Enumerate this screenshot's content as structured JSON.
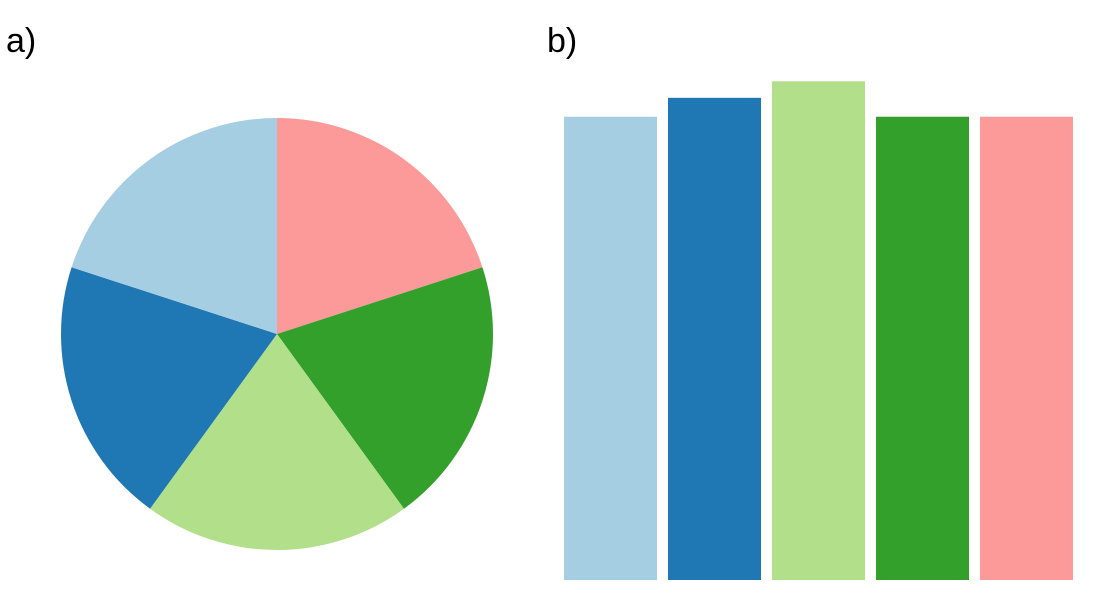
{
  "panels": {
    "a_label": "a)",
    "b_label": "b)"
  },
  "chart_data": [
    {
      "type": "pie",
      "panel": "a)",
      "values": [
        20,
        20,
        20,
        20,
        20
      ],
      "colors": [
        "#fb9a99",
        "#33a02c",
        "#b2df8a",
        "#1f78b4",
        "#a6cee3"
      ],
      "start_angle_deg": 0,
      "direction": "clockwise",
      "title": ""
    },
    {
      "type": "bar",
      "panel": "b)",
      "values": [
        19.6,
        20.4,
        21.1,
        19.6,
        19.6
      ],
      "colors": [
        "#a6cee3",
        "#1f78b4",
        "#b2df8a",
        "#33a02c",
        "#fb9a99"
      ],
      "ylim": [
        0,
        22
      ],
      "grid": false,
      "title": ""
    }
  ]
}
